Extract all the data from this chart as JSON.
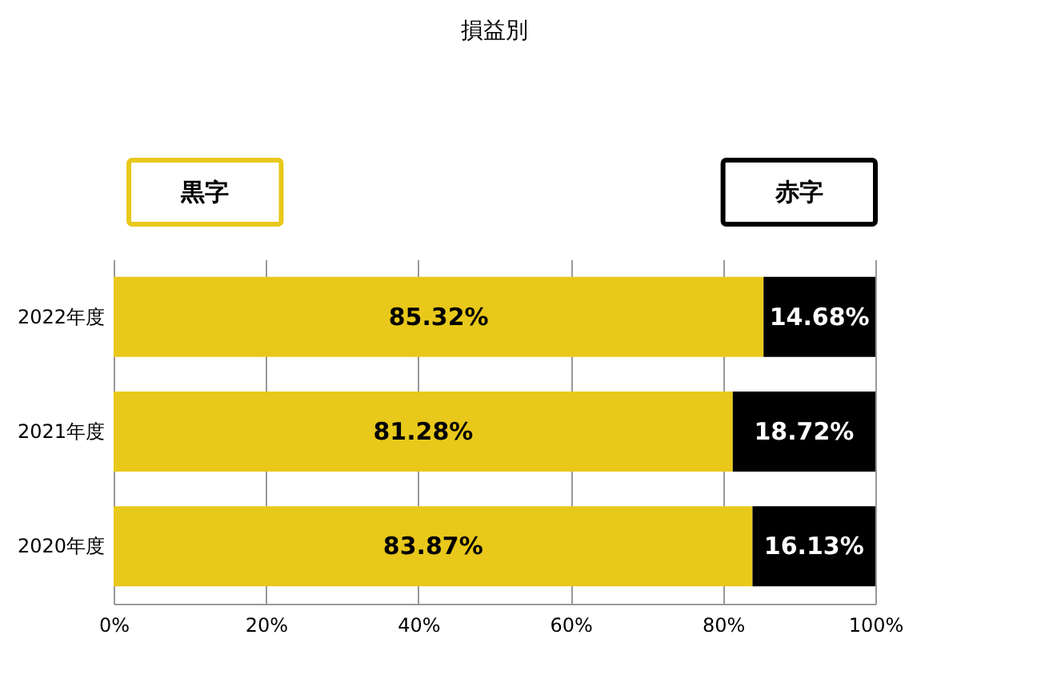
{
  "chart_data": {
    "type": "bar",
    "orientation": "horizontal",
    "stacked": true,
    "title": "損益別",
    "categories": [
      "2022年度",
      "2021年度",
      "2020年度"
    ],
    "series": [
      {
        "name": "黒字",
        "color": "#e8c81a",
        "values": [
          85.32,
          81.28,
          83.87
        ],
        "value_labels": [
          "85.32%",
          "81.28%",
          "83.87%"
        ]
      },
      {
        "name": "赤字",
        "color": "#000000",
        "values": [
          14.68,
          18.72,
          16.13
        ],
        "value_labels": [
          "14.68%",
          "18.72%",
          "16.13%"
        ]
      }
    ],
    "xlim": [
      0,
      100
    ],
    "xticks": [
      {
        "value": 0,
        "label": "0%"
      },
      {
        "value": 20,
        "label": "20%"
      },
      {
        "value": 40,
        "label": "40%"
      },
      {
        "value": 60,
        "label": "60%"
      },
      {
        "value": 80,
        "label": "80%"
      },
      {
        "value": 100,
        "label": "100%"
      }
    ],
    "grid": "x"
  }
}
